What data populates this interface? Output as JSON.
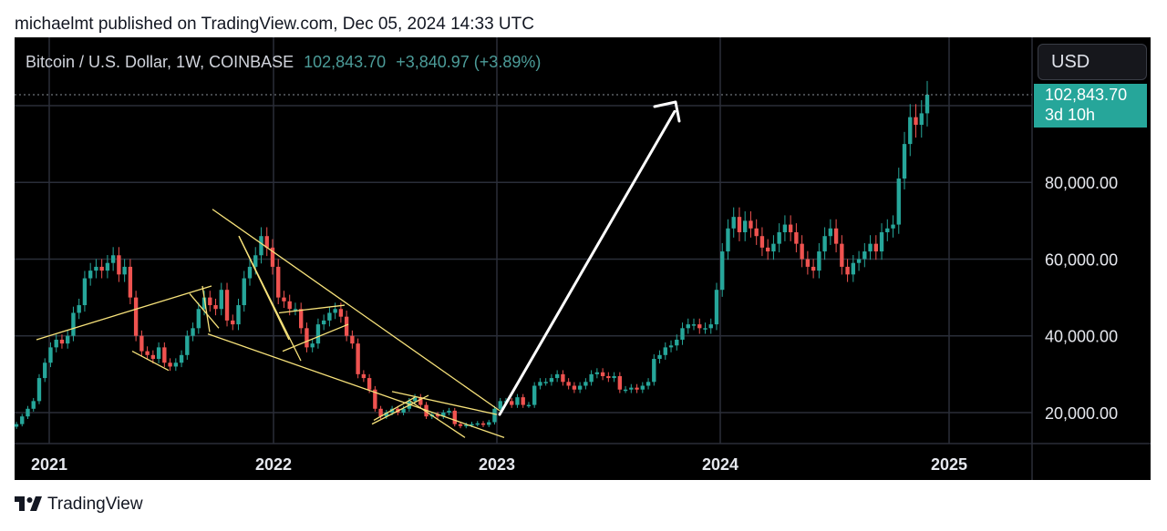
{
  "byline": "michaelmt published on TradingView.com, Dec 05, 2024 14:33 UTC",
  "legend": {
    "symbol": "Bitcoin / U.S. Dollar, 1W, COINBASE",
    "price": "102,843.70",
    "change": "+3,840.97 (+3.89%)"
  },
  "currency_button": "USD",
  "price_label": {
    "price": "102,843.70",
    "countdown": "3d 10h"
  },
  "brand": "TradingView",
  "colors": {
    "up": "#26a69a",
    "down": "#ef5350",
    "background": "#000000",
    "grid": "#2a2e39",
    "trendline": "#f7e27a",
    "arrow": "#ffffff",
    "accent": "#26a69a"
  },
  "chart_data": {
    "type": "candlestick",
    "x_ticks": [
      "2021",
      "2022",
      "2023",
      "2024",
      "2025"
    ],
    "y_ticks": [
      "20,000.00",
      "40,000.00",
      "60,000.00",
      "80,000.00"
    ],
    "ylim": [
      12000,
      115000
    ],
    "grid": true,
    "last_price": 102843.7,
    "closes": [
      17000,
      19000,
      21000,
      23000,
      29000,
      33000,
      37000,
      39000,
      38000,
      40000,
      46000,
      48000,
      55000,
      57000,
      58000,
      57000,
      59000,
      61000,
      56000,
      58000,
      50000,
      40000,
      36000,
      35000,
      34000,
      37000,
      33000,
      32000,
      33000,
      35000,
      40000,
      42000,
      47000,
      50000,
      48000,
      47000,
      52000,
      44000,
      43000,
      48000,
      55000,
      58000,
      61000,
      66000,
      63000,
      58000,
      50000,
      49000,
      47000,
      47000,
      42000,
      37000,
      38000,
      43000,
      44000,
      46000,
      47000,
      45000,
      40000,
      38000,
      30000,
      29000,
      26000,
      21000,
      19000,
      20000,
      21000,
      20000,
      21000,
      23000,
      24000,
      22000,
      19000,
      19500,
      19000,
      20000,
      20500,
      17000,
      16500,
      16800,
      17000,
      17200,
      16800,
      17500,
      21000,
      23000,
      23000,
      22000,
      24000,
      22000,
      22000,
      27000,
      28000,
      28000,
      29000,
      30000,
      28000,
      27000,
      26000,
      27000,
      28000,
      30000,
      30500,
      29500,
      29000,
      29500,
      26000,
      26000,
      26500,
      26000,
      27000,
      28000,
      34000,
      35000,
      37000,
      37500,
      39000,
      42000,
      43000,
      43000,
      42000,
      42000,
      43000,
      52000,
      62000,
      68000,
      71000,
      67000,
      70000,
      68000,
      66000,
      63000,
      62000,
      64000,
      67000,
      69000,
      67000,
      64000,
      60000,
      58000,
      57000,
      62000,
      66000,
      68000,
      64000,
      58000,
      56000,
      59000,
      60000,
      62000,
      64000,
      62000,
      67000,
      68000,
      69000,
      81000,
      90000,
      97000,
      95000,
      98000,
      102843.7
    ]
  }
}
